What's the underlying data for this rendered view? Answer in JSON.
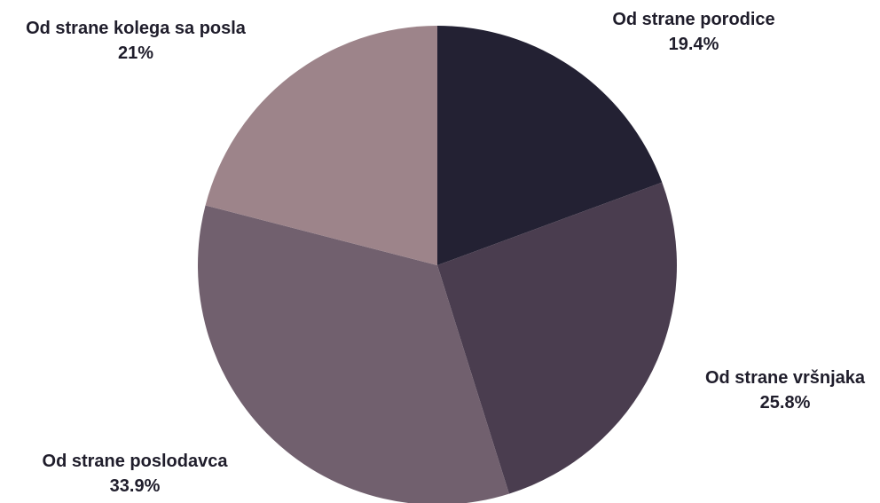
{
  "chart_data": {
    "type": "pie",
    "slices": [
      {
        "name": "Od strane porodice",
        "value": 19.4,
        "value_label": "19.4%",
        "color": "#232133"
      },
      {
        "name": "Od strane vršnjaka",
        "value": 25.8,
        "value_label": "25.8%",
        "color": "#4a3d4f"
      },
      {
        "name": "Od strane poslodavca",
        "value": 33.9,
        "value_label": "33.9%",
        "color": "#71606e"
      },
      {
        "name": "Od strane kolega sa posla",
        "value": 21,
        "value_label": "21%",
        "color": "#9d848a"
      }
    ],
    "start_angle": "12 o'clock",
    "direction": "clockwise",
    "legend": "none"
  }
}
